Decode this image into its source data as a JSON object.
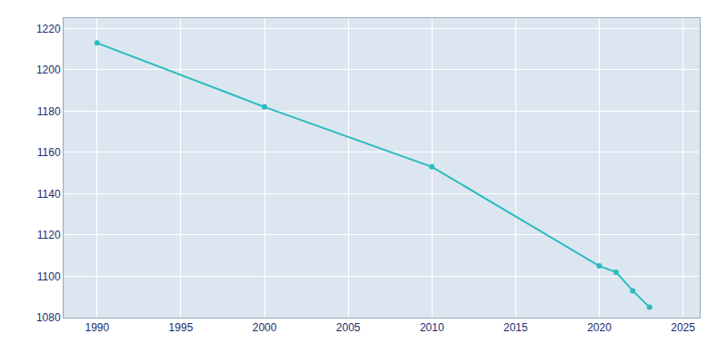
{
  "chart_data": {
    "type": "line",
    "x": [
      1990,
      2000,
      2010,
      2020,
      2021,
      2022,
      2023
    ],
    "values": [
      1213,
      1182,
      1153,
      1105,
      1102,
      1093,
      1085
    ],
    "color": "#2bbcbf",
    "marker": "circle",
    "xlim": [
      1988,
      2026
    ],
    "ylim": [
      1080,
      1225
    ],
    "xticks": [
      1990,
      1995,
      2000,
      2005,
      2010,
      2015,
      2020,
      2025
    ],
    "yticks": [
      1080,
      1100,
      1120,
      1140,
      1160,
      1180,
      1200,
      1220
    ],
    "grid": true
  }
}
